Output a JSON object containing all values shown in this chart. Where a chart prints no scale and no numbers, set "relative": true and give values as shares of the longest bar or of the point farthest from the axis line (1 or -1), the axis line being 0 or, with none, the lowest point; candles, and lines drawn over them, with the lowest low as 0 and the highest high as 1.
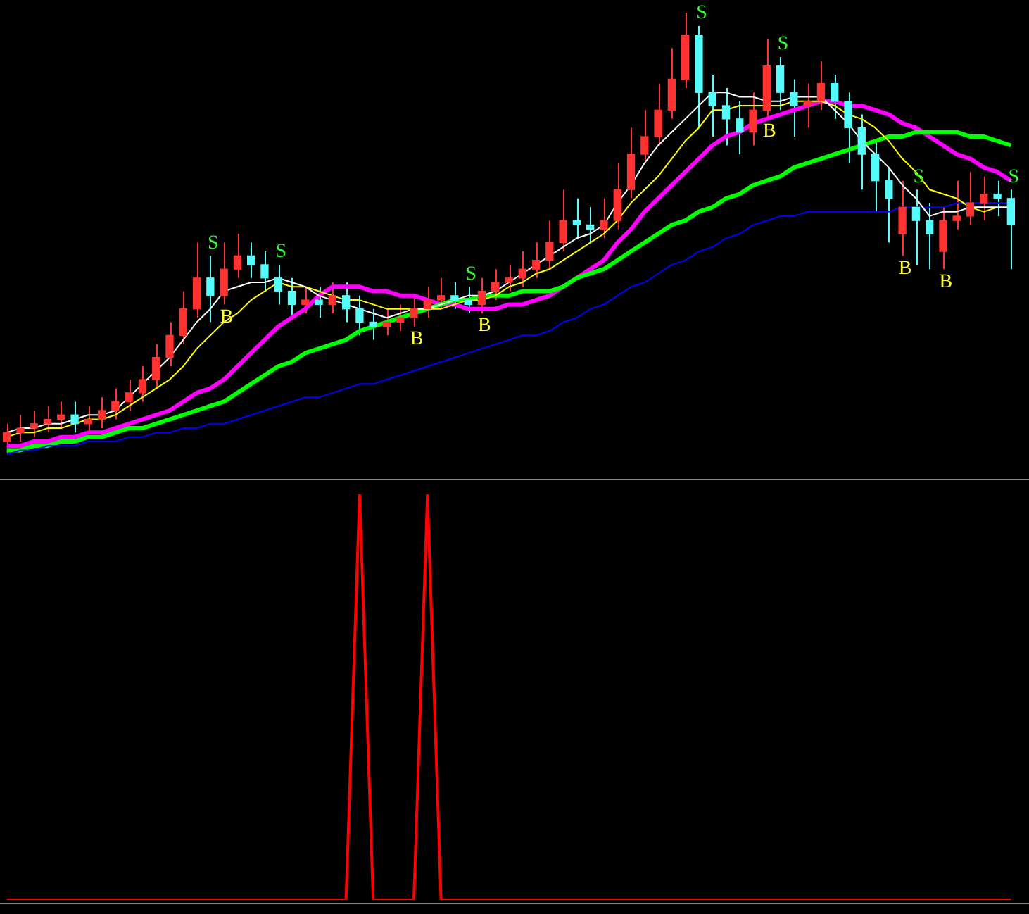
{
  "chart_data": [
    {
      "type": "candlestick",
      "relative": true,
      "tick_labels": false,
      "categories": [
        null,
        null,
        null,
        null,
        null,
        null,
        null,
        null,
        null,
        null,
        null,
        null,
        null,
        null,
        null,
        null,
        null,
        null,
        null,
        null,
        null,
        null,
        null,
        null,
        null,
        null,
        null,
        null,
        null,
        null,
        null,
        null,
        null,
        null,
        null,
        null,
        null,
        null,
        null,
        null,
        null,
        null,
        null,
        null,
        null,
        null,
        null,
        null,
        null,
        null,
        null,
        null,
        null,
        null,
        null,
        null,
        null,
        null,
        null,
        null,
        null,
        null,
        null,
        null,
        null,
        null,
        null,
        null,
        null,
        null,
        null,
        null,
        null,
        null,
        null
      ],
      "ohlc": [
        [
          0.03,
          0.07,
          0,
          0.05
        ],
        [
          0.05,
          0.09,
          0.03,
          0.06
        ],
        [
          0.06,
          0.1,
          0.04,
          0.07
        ],
        [
          0.07,
          0.11,
          0.05,
          0.08
        ],
        [
          0.08,
          0.12,
          0.06,
          0.09
        ],
        [
          0.09,
          0.12,
          0.05,
          0.07
        ],
        [
          0.07,
          0.11,
          0.05,
          0.08
        ],
        [
          0.08,
          0.13,
          0.06,
          0.1
        ],
        [
          0.1,
          0.15,
          0.08,
          0.12
        ],
        [
          0.12,
          0.17,
          0.1,
          0.14
        ],
        [
          0.14,
          0.2,
          0.12,
          0.17
        ],
        [
          0.17,
          0.25,
          0.15,
          0.22
        ],
        [
          0.22,
          0.3,
          0.2,
          0.27
        ],
        [
          0.27,
          0.37,
          0.25,
          0.33
        ],
        [
          0.33,
          0.48,
          0.31,
          0.4
        ],
        [
          0.4,
          0.45,
          0.3,
          0.36
        ],
        [
          0.36,
          0.48,
          0.34,
          0.42
        ],
        [
          0.42,
          0.5,
          0.4,
          0.45
        ],
        [
          0.45,
          0.48,
          0.4,
          0.43
        ],
        [
          0.43,
          0.46,
          0.37,
          0.4
        ],
        [
          0.4,
          0.43,
          0.34,
          0.37
        ],
        [
          0.37,
          0.4,
          0.31,
          0.34
        ],
        [
          0.34,
          0.38,
          0.32,
          0.35
        ],
        [
          0.35,
          0.38,
          0.31,
          0.34
        ],
        [
          0.34,
          0.39,
          0.32,
          0.36
        ],
        [
          0.36,
          0.39,
          0.3,
          0.33
        ],
        [
          0.33,
          0.36,
          0.27,
          0.3
        ],
        [
          0.3,
          0.33,
          0.26,
          0.29
        ],
        [
          0.29,
          0.33,
          0.27,
          0.3
        ],
        [
          0.3,
          0.34,
          0.28,
          0.31
        ],
        [
          0.31,
          0.36,
          0.29,
          0.33
        ],
        [
          0.33,
          0.38,
          0.31,
          0.35
        ],
        [
          0.35,
          0.4,
          0.33,
          0.36
        ],
        [
          0.36,
          0.39,
          0.33,
          0.35
        ],
        [
          0.35,
          0.38,
          0.32,
          0.34
        ],
        [
          0.34,
          0.4,
          0.32,
          0.37
        ],
        [
          0.37,
          0.42,
          0.35,
          0.39
        ],
        [
          0.39,
          0.43,
          0.37,
          0.4
        ],
        [
          0.4,
          0.46,
          0.38,
          0.42
        ],
        [
          0.42,
          0.48,
          0.4,
          0.44
        ],
        [
          0.44,
          0.53,
          0.42,
          0.48
        ],
        [
          0.48,
          0.6,
          0.46,
          0.53
        ],
        [
          0.53,
          0.58,
          0.49,
          0.52
        ],
        [
          0.52,
          0.56,
          0.48,
          0.51
        ],
        [
          0.51,
          0.58,
          0.49,
          0.53
        ],
        [
          0.53,
          0.66,
          0.51,
          0.6
        ],
        [
          0.6,
          0.74,
          0.58,
          0.68
        ],
        [
          0.68,
          0.78,
          0.66,
          0.72
        ],
        [
          0.72,
          0.84,
          0.7,
          0.78
        ],
        [
          0.78,
          0.92,
          0.76,
          0.85
        ],
        [
          0.85,
          1,
          0.83,
          0.95
        ],
        [
          0.95,
          0.97,
          0.74,
          0.82
        ],
        [
          0.82,
          0.86,
          0.72,
          0.79
        ],
        [
          0.79,
          0.83,
          0.7,
          0.76
        ],
        [
          0.76,
          0.8,
          0.68,
          0.73
        ],
        [
          0.73,
          0.82,
          0.7,
          0.78
        ],
        [
          0.78,
          0.94,
          0.76,
          0.88
        ],
        [
          0.88,
          0.9,
          0.78,
          0.82
        ],
        [
          0.82,
          0.85,
          0.72,
          0.79
        ],
        [
          0.79,
          0.84,
          0.74,
          0.8
        ],
        [
          0.8,
          0.89,
          0.78,
          0.84
        ],
        [
          0.84,
          0.86,
          0.76,
          0.8
        ],
        [
          0.8,
          0.82,
          0.66,
          0.74
        ],
        [
          0.74,
          0.77,
          0.6,
          0.68
        ],
        [
          0.68,
          0.71,
          0.55,
          0.62
        ],
        [
          0.62,
          0.65,
          0.48,
          0.58
        ],
        [
          0.5,
          0.62,
          0.45,
          0.56
        ],
        [
          0.56,
          0.6,
          0.43,
          0.53
        ],
        [
          0.53,
          0.57,
          0.42,
          0.5
        ],
        [
          0.46,
          0.56,
          0.42,
          0.53
        ],
        [
          0.53,
          0.62,
          0.51,
          0.54
        ],
        [
          0.54,
          0.64,
          0.52,
          0.57
        ],
        [
          0.57,
          0.63,
          0.53,
          0.59
        ],
        [
          0.59,
          0.62,
          0.54,
          0.58
        ],
        [
          0.58,
          0.6,
          0.42,
          0.52
        ]
      ],
      "colors": [
        "#ff3232",
        "#ff3232",
        "#ff3232",
        "#ff3232",
        "#ff3232",
        "#54fcfc",
        "#ff3232",
        "#ff3232",
        "#ff3232",
        "#ff3232",
        "#ff3232",
        "#ff3232",
        "#ff3232",
        "#ff3232",
        "#ff3232",
        "#54fcfc",
        "#ff3232",
        "#ff3232",
        "#54fcfc",
        "#54fcfc",
        "#54fcfc",
        "#54fcfc",
        "#ff3232",
        "#54fcfc",
        "#ff3232",
        "#54fcfc",
        "#54fcfc",
        "#54fcfc",
        "#ff3232",
        "#ff3232",
        "#ff3232",
        "#ff3232",
        "#ff3232",
        "#54fcfc",
        "#54fcfc",
        "#ff3232",
        "#ff3232",
        "#ff3232",
        "#ff3232",
        "#ff3232",
        "#ff3232",
        "#ff3232",
        "#54fcfc",
        "#54fcfc",
        "#ff3232",
        "#ff3232",
        "#ff3232",
        "#ff3232",
        "#ff3232",
        "#ff3232",
        "#ff3232",
        "#54fcfc",
        "#54fcfc",
        "#54fcfc",
        "#54fcfc",
        "#ff3232",
        "#ff3232",
        "#54fcfc",
        "#54fcfc",
        "#ff3232",
        "#ff3232",
        "#54fcfc",
        "#54fcfc",
        "#54fcfc",
        "#54fcfc",
        "#54fcfc",
        "#ff3232",
        "#54fcfc",
        "#54fcfc",
        "#ff3232",
        "#ff3232",
        "#ff3232",
        "#ff3232",
        "#54fcfc",
        "#54fcfc"
      ],
      "value_labels": [
        null,
        null,
        null,
        null,
        null,
        null,
        null,
        null,
        null,
        null,
        null,
        null,
        null,
        null,
        null,
        "S",
        "B",
        null,
        null,
        null,
        "S",
        null,
        null,
        null,
        null,
        null,
        null,
        null,
        null,
        null,
        "B",
        null,
        null,
        null,
        "S",
        "B",
        null,
        null,
        null,
        null,
        null,
        null,
        null,
        null,
        null,
        null,
        null,
        null,
        null,
        null,
        null,
        "S",
        null,
        null,
        null,
        null,
        "B",
        "S",
        null,
        null,
        null,
        null,
        null,
        null,
        null,
        null,
        "B",
        "S",
        null,
        "B",
        null,
        null,
        null,
        null,
        "S"
      ],
      "series": [
        {
          "type": "line",
          "color": "#ffffff",
          "values": [
            0.05,
            0.06,
            0.06,
            0.07,
            0.07,
            0.08,
            0.09,
            0.09,
            0.1,
            0.13,
            0.16,
            0.19,
            0.22,
            0.26,
            0.3,
            0.33,
            0.37,
            0.38,
            0.39,
            0.39,
            0.4,
            0.39,
            0.38,
            0.36,
            0.35,
            0.34,
            0.33,
            0.32,
            0.31,
            0.32,
            0.33,
            0.33,
            0.34,
            0.35,
            0.36,
            0.36,
            0.37,
            0.39,
            0.41,
            0.43,
            0.45,
            0.47,
            0.49,
            0.5,
            0.52,
            0.57,
            0.61,
            0.66,
            0.7,
            0.73,
            0.76,
            0.79,
            0.82,
            0.82,
            0.81,
            0.81,
            0.8,
            0.8,
            0.81,
            0.81,
            0.81,
            0.78,
            0.75,
            0.71,
            0.68,
            0.65,
            0.61,
            0.58,
            0.54,
            0.55,
            0.55,
            0.56,
            0.56,
            0.56,
            0.56
          ]
        },
        {
          "type": "line",
          "color": "#ffff00",
          "values": [
            0.04,
            0.05,
            0.05,
            0.06,
            0.06,
            0.07,
            0.08,
            0.08,
            0.09,
            0.11,
            0.13,
            0.15,
            0.17,
            0.2,
            0.24,
            0.27,
            0.3,
            0.32,
            0.35,
            0.37,
            0.39,
            0.38,
            0.38,
            0.37,
            0.36,
            0.35,
            0.35,
            0.34,
            0.33,
            0.33,
            0.33,
            0.33,
            0.33,
            0.34,
            0.35,
            0.35,
            0.36,
            0.38,
            0.39,
            0.41,
            0.42,
            0.44,
            0.46,
            0.48,
            0.5,
            0.53,
            0.57,
            0.6,
            0.63,
            0.67,
            0.71,
            0.74,
            0.78,
            0.78,
            0.79,
            0.79,
            0.79,
            0.79,
            0.8,
            0.8,
            0.8,
            0.79,
            0.77,
            0.76,
            0.74,
            0.71,
            0.67,
            0.64,
            0.6,
            0.59,
            0.58,
            0.56,
            0.55,
            0.56,
            null
          ]
        },
        {
          "type": "line",
          "color": "#0000ff",
          "values": [
            0,
            0.01,
            0.01,
            0.02,
            0.02,
            0.02,
            0.03,
            0.03,
            0.03,
            0.04,
            0.04,
            0.05,
            0.05,
            0.06,
            0.06,
            0.07,
            0.07,
            0.08,
            0.09,
            0.1,
            0.11,
            0.12,
            0.13,
            0.13,
            0.14,
            0.15,
            0.16,
            0.16,
            0.17,
            0.18,
            0.19,
            0.2,
            0.21,
            0.22,
            0.23,
            0.24,
            0.25,
            0.26,
            0.27,
            0.27,
            0.28,
            0.3,
            0.31,
            0.33,
            0.34,
            0.36,
            0.38,
            0.39,
            0.41,
            0.43,
            0.44,
            0.46,
            0.47,
            0.49,
            0.5,
            0.52,
            0.53,
            0.54,
            0.54,
            0.55,
            0.55,
            0.55,
            0.55,
            0.55,
            0.55,
            0.55,
            0.56,
            0.56,
            0.56,
            0.56,
            0.57,
            0.57,
            0.57,
            0.57,
            0.57
          ]
        },
        {
          "type": "line",
          "color": "#00ff00",
          "values": [
            0.01,
            0.01,
            0.02,
            0.02,
            0.03,
            0.03,
            0.04,
            0.04,
            0.05,
            0.06,
            0.06,
            0.07,
            0.08,
            0.09,
            0.1,
            0.11,
            0.12,
            0.14,
            0.16,
            0.18,
            0.2,
            0.21,
            0.23,
            0.24,
            0.25,
            0.26,
            0.28,
            0.29,
            0.3,
            0.31,
            0.32,
            0.33,
            0.34,
            0.35,
            0.35,
            0.36,
            0.36,
            0.36,
            0.37,
            0.37,
            0.37,
            0.38,
            0.4,
            0.41,
            0.42,
            0.44,
            0.46,
            0.48,
            0.5,
            0.52,
            0.53,
            0.55,
            0.56,
            0.58,
            0.59,
            0.61,
            0.62,
            0.63,
            0.65,
            0.66,
            0.67,
            0.68,
            0.69,
            0.7,
            0.71,
            0.72,
            0.72,
            0.73,
            0.73,
            0.73,
            0.73,
            0.72,
            0.72,
            0.71,
            0.7
          ]
        },
        {
          "type": "line",
          "color": "#ff00ff",
          "values": [
            0.02,
            0.02,
            0.03,
            0.03,
            0.04,
            0.04,
            0.05,
            0.05,
            0.06,
            0.07,
            0.08,
            0.09,
            0.1,
            0.12,
            0.14,
            0.15,
            0.17,
            0.2,
            0.23,
            0.26,
            0.29,
            0.31,
            0.33,
            0.36,
            0.38,
            0.38,
            0.38,
            0.37,
            0.37,
            0.36,
            0.36,
            0.35,
            0.34,
            0.34,
            0.33,
            0.33,
            0.33,
            0.34,
            0.34,
            0.35,
            0.36,
            0.38,
            0.4,
            0.42,
            0.44,
            0.48,
            0.51,
            0.55,
            0.58,
            0.61,
            0.64,
            0.67,
            0.7,
            0.72,
            0.73,
            0.75,
            0.76,
            0.77,
            0.78,
            0.79,
            0.8,
            0.8,
            0.79,
            0.79,
            0.78,
            0.77,
            0.75,
            0.74,
            0.72,
            0.7,
            0.68,
            0.67,
            0.65,
            0.64,
            0.62
          ]
        }
      ]
    },
    {
      "type": "line",
      "relative": true,
      "tick_labels": false,
      "color": "#ff0000",
      "categories": [
        null,
        null,
        null,
        null,
        null,
        null,
        null,
        null,
        null,
        null,
        null,
        null,
        null,
        null,
        null,
        null,
        null,
        null,
        null,
        null,
        null,
        null,
        null,
        null,
        null,
        null,
        null,
        null,
        null,
        null,
        null,
        null,
        null,
        null,
        null,
        null,
        null,
        null,
        null,
        null,
        null,
        null,
        null,
        null,
        null,
        null,
        null,
        null,
        null,
        null,
        null,
        null,
        null,
        null,
        null,
        null,
        null,
        null,
        null,
        null,
        null,
        null,
        null,
        null,
        null,
        null,
        null,
        null,
        null,
        null,
        null,
        null,
        null,
        null,
        null
      ],
      "values": [
        0,
        0,
        0,
        0,
        0,
        0,
        0,
        0,
        0,
        0,
        0,
        0,
        0,
        0,
        0,
        0,
        0,
        0,
        0,
        0,
        0,
        0,
        0,
        0,
        0,
        0,
        1,
        0,
        0,
        0,
        0,
        1,
        0,
        0,
        0,
        0,
        0,
        0,
        0,
        0,
        0,
        0,
        0,
        0,
        0,
        0,
        0,
        0,
        0,
        0,
        0,
        0,
        0,
        0,
        0,
        0,
        0,
        0,
        0,
        0,
        0,
        0,
        0,
        0,
        0,
        0,
        0,
        0,
        0,
        0,
        0,
        0,
        0,
        0,
        0
      ]
    }
  ]
}
